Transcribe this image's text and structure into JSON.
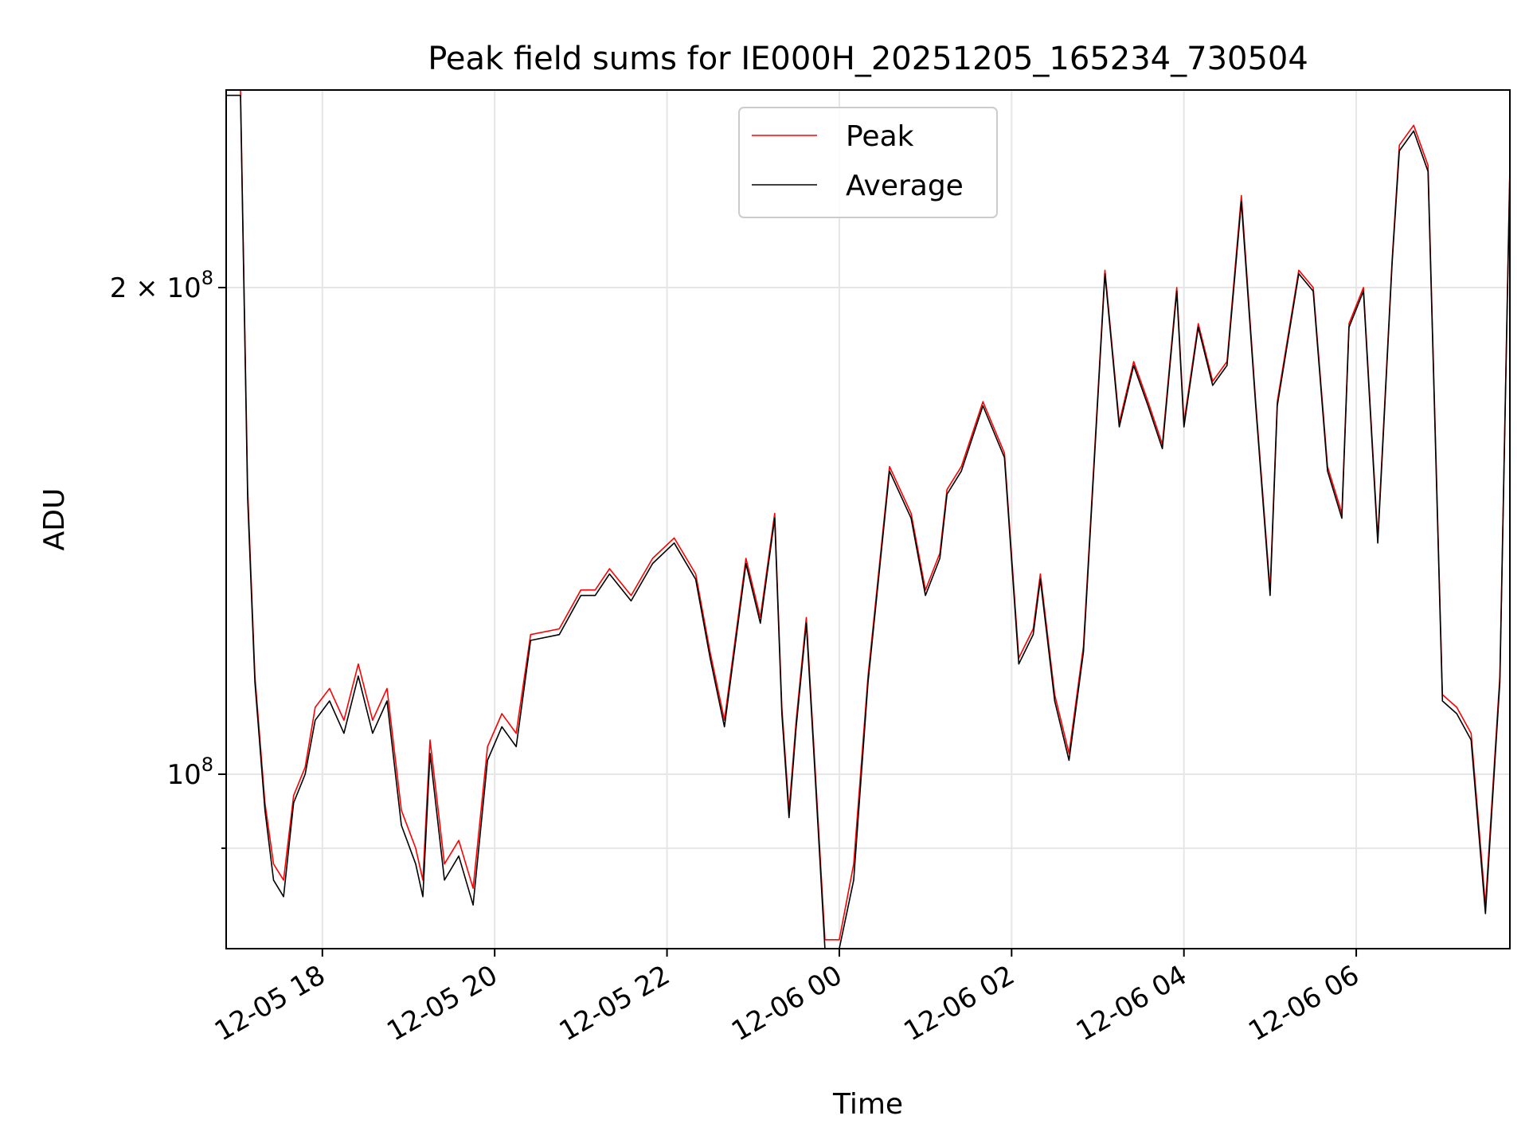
{
  "chart_data": {
    "type": "line",
    "title": "Peak field sums for IE000H_20251205_165234_730504",
    "xlabel": "Time",
    "ylabel": "ADU",
    "yscale": "log",
    "xlim": [
      "2025-12-05 16:53",
      "2025-12-06 07:47"
    ],
    "ylim": [
      78000000,
      265000000
    ],
    "grid": true,
    "legend_position": "top-center",
    "x_ticks": [
      {
        "value": "2025-12-05 18:00",
        "label": "12-05 18"
      },
      {
        "value": "2025-12-05 20:00",
        "label": "12-05 20"
      },
      {
        "value": "2025-12-05 22:00",
        "label": "12-05 22"
      },
      {
        "value": "2025-12-06 00:00",
        "label": "12-06 00"
      },
      {
        "value": "2025-12-06 02:00",
        "label": "12-06 02"
      },
      {
        "value": "2025-12-06 04:00",
        "label": "12-06 04"
      },
      {
        "value": "2025-12-06 06:00",
        "label": "12-06 06"
      }
    ],
    "y_major_ticks": [
      {
        "value": 100000000,
        "base": "10",
        "exp": "8",
        "mantissa": ""
      },
      {
        "value": 200000000,
        "base": "10",
        "exp": "8",
        "mantissa": "2"
      }
    ],
    "y_minor_ticks": [
      90000000
    ],
    "series": [
      {
        "name": "Peak",
        "color": "#ff0000"
      },
      {
        "name": "Average",
        "color": "#000000"
      }
    ],
    "x": [
      "2025-12-05 16:53",
      "2025-12-05 17:03",
      "2025-12-05 17:08",
      "2025-12-05 17:13",
      "2025-12-05 17:20",
      "2025-12-05 17:26",
      "2025-12-05 17:33",
      "2025-12-05 17:40",
      "2025-12-05 17:48",
      "2025-12-05 17:55",
      "2025-12-05 18:05",
      "2025-12-05 18:15",
      "2025-12-05 18:25",
      "2025-12-05 18:35",
      "2025-12-05 18:45",
      "2025-12-05 18:55",
      "2025-12-05 19:05",
      "2025-12-05 19:10",
      "2025-12-05 19:15",
      "2025-12-05 19:25",
      "2025-12-05 19:35",
      "2025-12-05 19:45",
      "2025-12-05 19:55",
      "2025-12-05 20:05",
      "2025-12-05 20:15",
      "2025-12-05 20:25",
      "2025-12-05 20:45",
      "2025-12-05 21:00",
      "2025-12-05 21:10",
      "2025-12-05 21:20",
      "2025-12-05 21:35",
      "2025-12-05 21:50",
      "2025-12-05 22:05",
      "2025-12-05 22:20",
      "2025-12-05 22:30",
      "2025-12-05 22:40",
      "2025-12-05 22:55",
      "2025-12-05 23:05",
      "2025-12-05 23:15",
      "2025-12-05 23:20",
      "2025-12-05 23:25",
      "2025-12-05 23:30",
      "2025-12-05 23:37",
      "2025-12-05 23:42",
      "2025-12-05 23:50",
      "2025-12-06 00:00",
      "2025-12-06 00:10",
      "2025-12-06 00:20",
      "2025-12-06 00:35",
      "2025-12-06 00:50",
      "2025-12-06 01:00",
      "2025-12-06 01:10",
      "2025-12-06 01:15",
      "2025-12-06 01:25",
      "2025-12-06 01:40",
      "2025-12-06 01:55",
      "2025-12-06 02:05",
      "2025-12-06 02:15",
      "2025-12-06 02:20",
      "2025-12-06 02:30",
      "2025-12-06 02:40",
      "2025-12-06 02:50",
      "2025-12-06 03:05",
      "2025-12-06 03:15",
      "2025-12-06 03:25",
      "2025-12-06 03:35",
      "2025-12-06 03:45",
      "2025-12-06 03:55",
      "2025-12-06 04:00",
      "2025-12-06 04:10",
      "2025-12-06 04:20",
      "2025-12-06 04:30",
      "2025-12-06 04:40",
      "2025-12-06 04:50",
      "2025-12-06 05:00",
      "2025-12-06 05:05",
      "2025-12-06 05:20",
      "2025-12-06 05:30",
      "2025-12-06 05:40",
      "2025-12-06 05:50",
      "2025-12-06 05:55",
      "2025-12-06 06:05",
      "2025-12-06 06:15",
      "2025-12-06 06:25",
      "2025-12-06 06:30",
      "2025-12-06 06:40",
      "2025-12-06 06:50",
      "2025-12-06 07:00",
      "2025-12-06 07:10",
      "2025-12-06 07:20",
      "2025-12-06 07:30",
      "2025-12-06 07:40",
      "2025-12-06 07:47"
    ],
    "peak_values": [
      265000000,
      265000000,
      150000000,
      115000000,
      96000000,
      88000000,
      86000000,
      97000000,
      101000000,
      110000000,
      113000000,
      108000000,
      117000000,
      108000000,
      113000000,
      95000000,
      90000000,
      86000000,
      105000000,
      88000000,
      91000000,
      85000000,
      104000000,
      109000000,
      106000000,
      122000000,
      123000000,
      130000000,
      130000000,
      134000000,
      129000000,
      136000000,
      140000000,
      133000000,
      119000000,
      108000000,
      136000000,
      125000000,
      145000000,
      110000000,
      95000000,
      108000000,
      125000000,
      105000000,
      79000000,
      79000000,
      88000000,
      115000000,
      155000000,
      145000000,
      130000000,
      137000000,
      150000000,
      155000000,
      170000000,
      158000000,
      118000000,
      123000000,
      133000000,
      112000000,
      103000000,
      120000000,
      205000000,
      165000000,
      180000000,
      170000000,
      160000000,
      200000000,
      165000000,
      190000000,
      175000000,
      180000000,
      228000000,
      170000000,
      130000000,
      170000000,
      205000000,
      200000000,
      155000000,
      145000000,
      190000000,
      200000000,
      140000000,
      208000000,
      245000000,
      252000000,
      238000000,
      112000000,
      110000000,
      106000000,
      83000000,
      115000000,
      238000000
    ],
    "average_values": [
      263000000,
      263000000,
      148000000,
      114000000,
      95000000,
      86000000,
      84000000,
      96000000,
      100000000,
      108000000,
      111000000,
      106000000,
      115000000,
      106000000,
      111000000,
      93000000,
      88000000,
      84000000,
      103000000,
      86000000,
      89000000,
      83000000,
      102000000,
      107000000,
      104000000,
      121000000,
      122000000,
      129000000,
      129000000,
      133000000,
      128000000,
      135000000,
      139000000,
      132000000,
      118000000,
      107000000,
      135000000,
      124000000,
      144000000,
      109000000,
      94000000,
      107000000,
      124000000,
      104000000,
      78000000,
      78000000,
      86000000,
      114000000,
      154000000,
      144000000,
      129000000,
      136000000,
      149000000,
      154000000,
      169000000,
      157000000,
      117000000,
      122000000,
      132000000,
      111000000,
      102000000,
      119000000,
      204000000,
      164000000,
      179000000,
      169000000,
      159000000,
      199000000,
      164000000,
      189000000,
      174000000,
      179000000,
      226000000,
      169000000,
      129000000,
      169000000,
      204000000,
      199000000,
      154000000,
      144000000,
      189000000,
      199000000,
      139000000,
      207000000,
      243000000,
      250000000,
      236000000,
      111000000,
      109000000,
      105000000,
      82000000,
      114000000,
      236000000
    ]
  }
}
